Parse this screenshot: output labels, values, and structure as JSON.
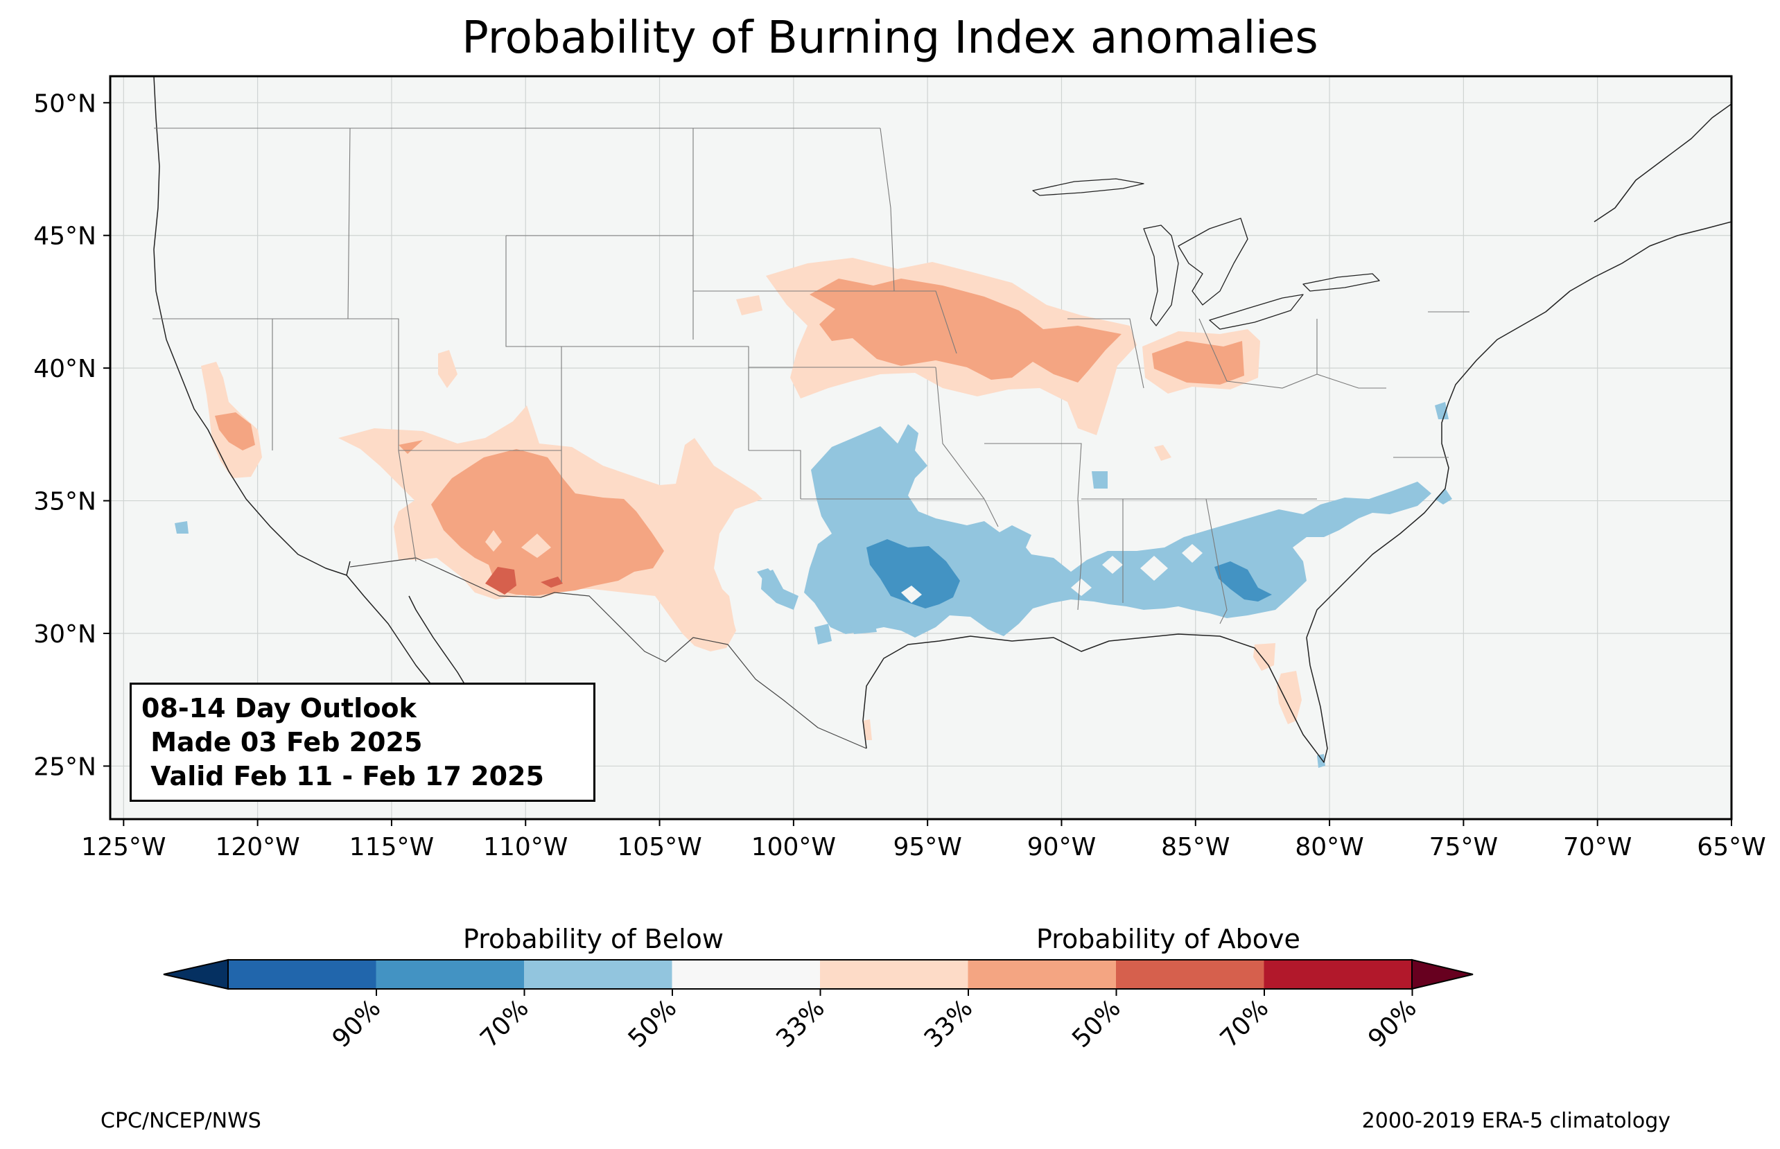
{
  "title": "Probability of Burning Index anomalies",
  "map": {
    "lat_labels": [
      "50°N",
      "45°N",
      "40°N",
      "35°N",
      "30°N",
      "25°N"
    ],
    "lon_labels": [
      "125°W",
      "120°W",
      "115°W",
      "110°W",
      "105°W",
      "100°W",
      "95°W",
      "90°W",
      "85°W",
      "80°W",
      "75°W",
      "70°W",
      "65°W"
    ],
    "extent": {
      "lon": [
        -125.5,
        -65
      ],
      "lat": [
        23,
        51
      ]
    },
    "background_color": "#f4f6f5",
    "regions_above": [
      {
        "area": "Great Plains / Upper Midwest (NE, IA, S MN, WI, IL)",
        "peak_category": "50%"
      },
      {
        "area": "Ohio Valley (IN, OH)",
        "peak_category": "50%"
      },
      {
        "area": "Southwest (AZ, NM, West TX)",
        "peak_category": "70%"
      },
      {
        "area": "Central California",
        "peak_category": "50%"
      },
      {
        "area": "Florida peninsula",
        "peak_category": "33%"
      }
    ],
    "regions_below": [
      {
        "area": "Southern Plains (OK, N TX)",
        "peak_category": "33%"
      },
      {
        "area": "East Texas / Louisiana",
        "peak_category": "50%"
      },
      {
        "area": "Southeast (MS, AL, GA, Carolinas)",
        "peak_category": "50%"
      }
    ]
  },
  "infobox": {
    "line1": "08-14 Day Outlook",
    "line2": " Made 03 Feb 2025",
    "line3": " Valid Feb 11 - Feb 17 2025"
  },
  "colorbar": {
    "below_title": "Probability of Below",
    "above_title": "Probability of Above",
    "tick_labels": [
      "90%",
      "70%",
      "50%",
      "33%",
      "33%",
      "50%",
      "70%",
      "90%"
    ],
    "colors": [
      "#053061",
      "#2166ac",
      "#4393c3",
      "#92c5de",
      "#f7f7f7",
      "#fddbc7",
      "#f4a582",
      "#d6604d",
      "#b2182b",
      "#67001f"
    ]
  },
  "credits": {
    "left": "CPC/NCEP/NWS",
    "right": "2000-2019 ERA-5 climatology"
  }
}
